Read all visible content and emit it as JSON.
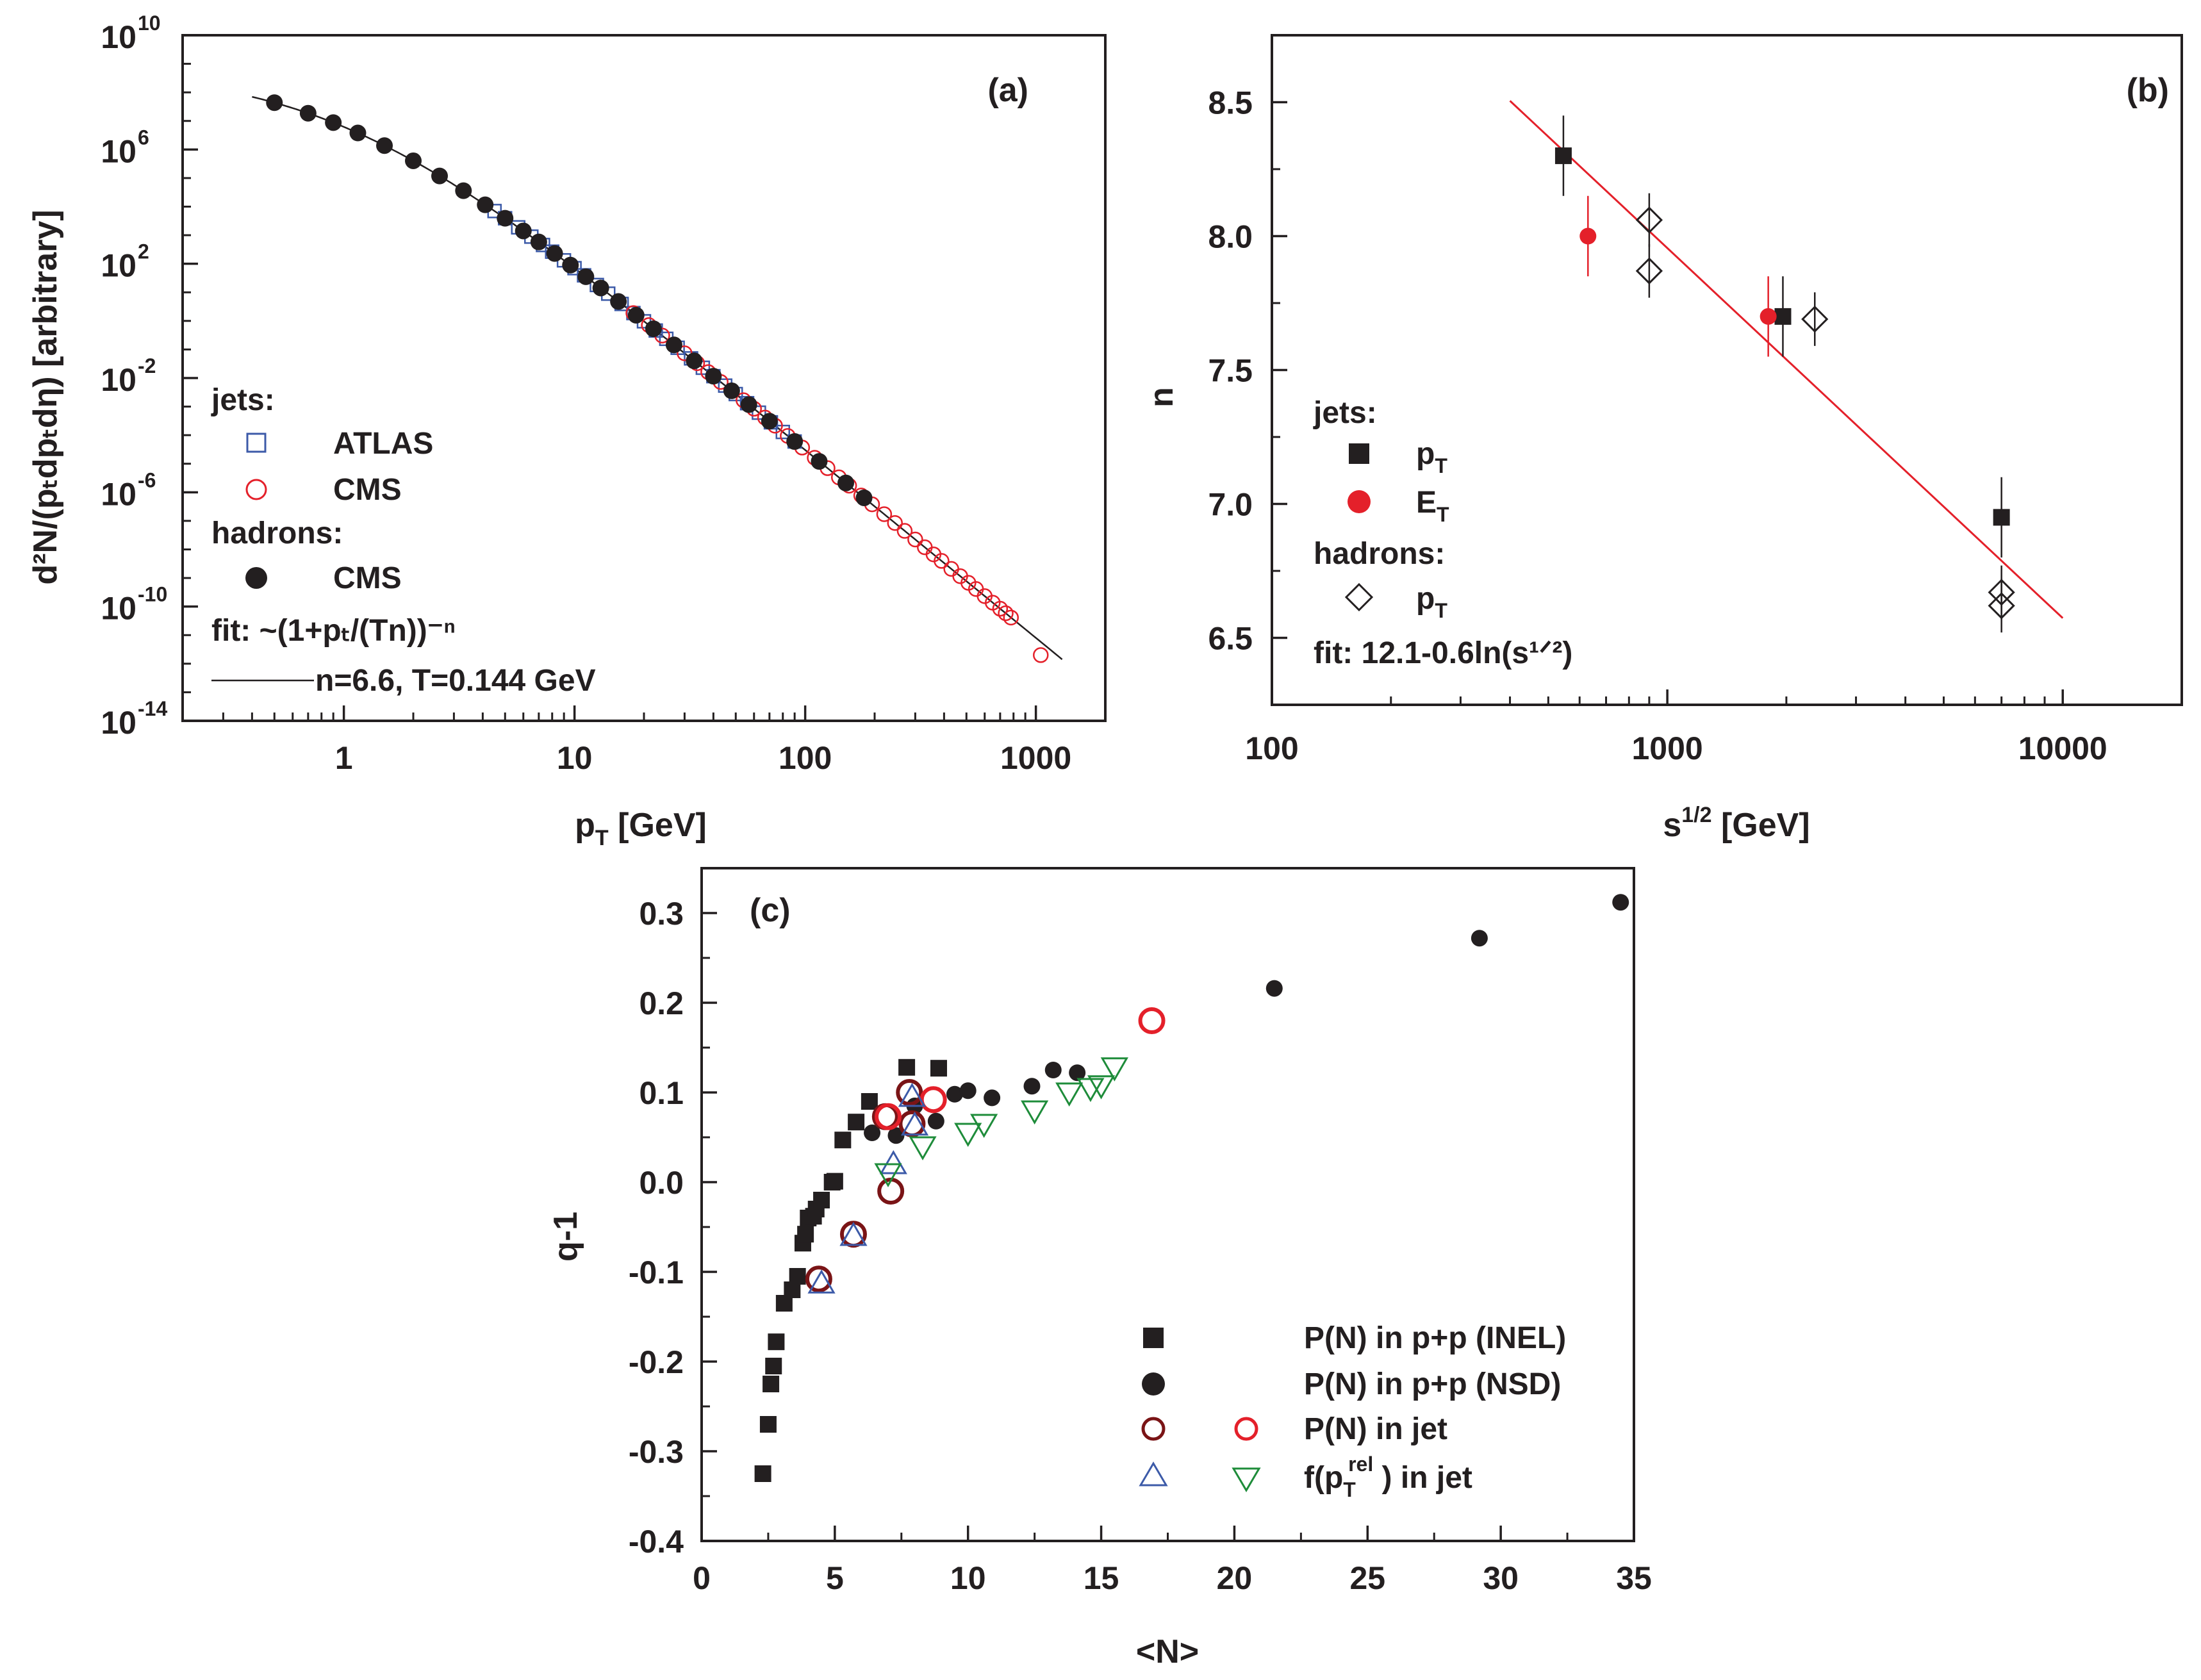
{
  "chart_data": [
    {
      "id": "a",
      "type": "scatter",
      "panel_label": "(a)",
      "xlabel_main": "p",
      "xlabel_sub": "T",
      "xlabel_unit": " [GeV]",
      "ylabel": "d²N/(pₜdpₜdη) [arbitrary]",
      "xscale": "log",
      "yscale": "log",
      "xlim": [
        0.2,
        2000
      ],
      "ylim": [
        1e-14,
        10000000000.0
      ],
      "xticks": [
        {
          "value": 1,
          "label": "1"
        },
        {
          "value": 10,
          "label": "10"
        },
        {
          "value": 100,
          "label": "100"
        },
        {
          "value": 1000,
          "label": "1000"
        }
      ],
      "yticks": [
        {
          "value": 10000000000.0,
          "exp": "10",
          "label": "10"
        },
        {
          "value": 1000000.0,
          "exp": "6",
          "label": "10"
        },
        {
          "value": 100.0,
          "exp": "2",
          "label": "10"
        },
        {
          "value": 0.01,
          "exp": "-2",
          "label": "10"
        },
        {
          "value": 1e-06,
          "exp": "-6",
          "label": "10"
        },
        {
          "value": 1e-10,
          "exp": "-10",
          "label": "10"
        },
        {
          "value": 1e-14,
          "exp": "-14",
          "label": "10"
        }
      ],
      "legend": {
        "jets_header": "jets:",
        "atlas": "ATLAS",
        "cms_jets": "CMS",
        "hadrons_header": "hadrons:",
        "cms_hadrons": "CMS",
        "fit_formula": "fit: ~(1+pₜ/(Tn))⁻ⁿ",
        "fit_params": "n=6.6, T=0.144 GeV"
      },
      "fit": {
        "n": 6.6,
        "T": 0.144,
        "norm_at_0.4": 70000000.0,
        "x_range": [
          0.4,
          1300
        ]
      },
      "series": [
        {
          "name": "ATLAS",
          "marker": "open-square",
          "color": "#3c5aa8",
          "x": [
            4.5,
            5.0,
            5.7,
            6.5,
            7.3,
            8.0,
            9.0,
            10.0,
            11.0,
            12.5,
            14.0,
            16.0,
            18.0,
            20.0,
            22.5,
            25.0,
            28.0,
            32.0,
            36.0,
            40.0,
            45.0,
            50.0,
            56.0,
            63.0,
            71.0,
            80.0,
            90.0
          ]
        },
        {
          "name": "CMS jets",
          "marker": "open-circle",
          "color": "#e4202a",
          "x": [
            18.0,
            21.0,
            24.0,
            27.0,
            30.0,
            34.0,
            38.0,
            43.0,
            48.0,
            54.0,
            60.0,
            67.0,
            74.0,
            84.0,
            97.0,
            110.0,
            125.0,
            140.0,
            155.0,
            175.0,
            195.0,
            220.0,
            245.0,
            270.0,
            300.0,
            330.0,
            360.0,
            390.0,
            430.0,
            470.0,
            510.0,
            550.0,
            600.0,
            650.0,
            700.0,
            740.0,
            780.0,
            1050.0
          ],
          "y_override": {
            "1050.0": 2e-12
          }
        },
        {
          "name": "CMS hadrons",
          "marker": "filled-circle",
          "color": "#231f20",
          "x": [
            0.5,
            0.7,
            0.9,
            1.15,
            1.5,
            2.0,
            2.6,
            3.3,
            4.1,
            5.0,
            6.0,
            7.0,
            8.2,
            9.6,
            11.2,
            13.0,
            15.5,
            18.5,
            22.0,
            27.0,
            33.0,
            40.0,
            48.0,
            57.0,
            70.0,
            90.0,
            115.0,
            150.0,
            180.0
          ]
        }
      ]
    },
    {
      "id": "b",
      "type": "scatter",
      "panel_label": "(b)",
      "xlabel_main": "s",
      "xlabel_sup": "1/2",
      "xlabel_unit": " [GeV]",
      "ylabel": "n",
      "xscale": "log",
      "xlim": [
        100,
        20000
      ],
      "ylim": [
        6.25,
        8.75
      ],
      "xticks": [
        {
          "value": 100,
          "label": "100"
        },
        {
          "value": 1000,
          "label": "1000"
        },
        {
          "value": 10000,
          "label": "10000"
        }
      ],
      "yticks": [
        {
          "value": 6.5,
          "label": "6.5"
        },
        {
          "value": 7.0,
          "label": "7.0"
        },
        {
          "value": 7.5,
          "label": "7.5"
        },
        {
          "value": 8.0,
          "label": "8.0"
        },
        {
          "value": 8.5,
          "label": "8.5"
        }
      ],
      "legend": {
        "jets_header": "jets:",
        "pt_main": "p",
        "pt_sub": "T",
        "et_main": "E",
        "et_sub": "T",
        "hadrons_header": "hadrons:",
        "hpt_main": "p",
        "hpt_sub": "T",
        "fit_text": "fit: 12.1-0.6ln(s¹ᐟ²)"
      },
      "fit": {
        "a": 12.1,
        "b": 0.6,
        "x_range": [
          400,
          10000
        ]
      },
      "series": [
        {
          "name": "jets pT",
          "marker": "filled-square",
          "color": "#231f20",
          "points": [
            {
              "x": 546,
              "y": 8.3,
              "err": 0.15
            },
            {
              "x": 1960,
              "y": 7.7,
              "err": 0.15
            },
            {
              "x": 7000,
              "y": 6.95,
              "err": 0.15
            }
          ]
        },
        {
          "name": "jets ET",
          "marker": "filled-circle",
          "color": "#e4202a",
          "points": [
            {
              "x": 630,
              "y": 8.0,
              "err": 0.15
            },
            {
              "x": 1800,
              "y": 7.7,
              "err": 0.15
            }
          ]
        },
        {
          "name": "hadrons pT",
          "marker": "open-diamond",
          "color": "#231f20",
          "points": [
            {
              "x": 900,
              "y": 8.06,
              "err": 0.1
            },
            {
              "x": 900,
              "y": 7.87,
              "err": 0.1
            },
            {
              "x": 2360,
              "y": 7.69,
              "err": 0.1
            },
            {
              "x": 7000,
              "y": 6.67,
              "err": 0.1
            },
            {
              "x": 7000,
              "y": 6.62,
              "err": 0.1
            }
          ]
        }
      ]
    },
    {
      "id": "c",
      "type": "scatter",
      "panel_label": "(c)",
      "xlabel": "<N>",
      "ylabel": "q-1",
      "xlim": [
        0,
        35
      ],
      "ylim": [
        -0.4,
        0.35
      ],
      "xticks": [
        {
          "value": 0,
          "label": "0"
        },
        {
          "value": 5,
          "label": "5"
        },
        {
          "value": 10,
          "label": "10"
        },
        {
          "value": 15,
          "label": "15"
        },
        {
          "value": 20,
          "label": "20"
        },
        {
          "value": 25,
          "label": "25"
        },
        {
          "value": 30,
          "label": "30"
        },
        {
          "value": 35,
          "label": "35"
        }
      ],
      "yticks": [
        {
          "value": 0.3,
          "label": "0.3"
        },
        {
          "value": 0.2,
          "label": "0.2"
        },
        {
          "value": 0.1,
          "label": "0.1"
        },
        {
          "value": 0.0,
          "label": "0.0"
        },
        {
          "value": -0.1,
          "label": "-0.1"
        },
        {
          "value": -0.2,
          "label": "-0.2"
        },
        {
          "value": -0.3,
          "label": "-0.3"
        },
        {
          "value": -0.4,
          "label": "-0.4"
        }
      ],
      "legend": {
        "inel": "P(N) in p+p (INEL)",
        "nsd": "P(N) in p+p (NSD)",
        "pn_jet": "P(N) in jet",
        "f_prefix": "f(p",
        "f_sub": "T",
        "f_sup": "rel",
        "f_suffix": " ) in jet"
      },
      "series": [
        {
          "name": "P(N) in p+p (INEL)",
          "marker": "filled-square",
          "color": "#231f20",
          "x": [
            2.3,
            2.5,
            2.6,
            2.7,
            2.8,
            3.1,
            3.4,
            3.6,
            3.8,
            3.9,
            4.0,
            4.2,
            4.3,
            4.5,
            4.9,
            5.0,
            5.3,
            5.8,
            6.3,
            7.7,
            8.9
          ],
          "y": [
            -0.325,
            -0.27,
            -0.225,
            -0.205,
            -0.178,
            -0.135,
            -0.12,
            -0.105,
            -0.068,
            -0.058,
            -0.04,
            -0.038,
            -0.03,
            -0.02,
            0.0,
            0.001,
            0.047,
            0.067,
            0.09,
            0.128,
            0.127
          ]
        },
        {
          "name": "P(N) in p+p (NSD)",
          "marker": "filled-circle",
          "color": "#231f20",
          "x": [
            6.4,
            7.3,
            8.0,
            8.8,
            9.5,
            10.0,
            10.9,
            12.4,
            13.2,
            14.1,
            21.5,
            29.2,
            34.5
          ],
          "y": [
            0.055,
            0.052,
            0.085,
            0.068,
            0.098,
            0.102,
            0.094,
            0.107,
            0.125,
            0.122,
            0.216,
            0.272,
            0.312
          ]
        },
        {
          "name": "P(N) in jet (dark)",
          "marker": "open-circle-thick",
          "color": "#7a1416",
          "x": [
            4.4,
            5.7,
            7.1,
            7.8,
            7.9,
            6.9
          ],
          "y": [
            -0.108,
            -0.058,
            -0.01,
            0.1,
            0.065,
            0.073
          ]
        },
        {
          "name": "P(N) in jet (red)",
          "marker": "open-circle-thick",
          "color": "#e4202a",
          "x": [
            7.0,
            8.7,
            16.9
          ],
          "y": [
            0.073,
            0.092,
            0.18
          ]
        },
        {
          "name": "f(pT rel) in jet (blue)",
          "marker": "open-triangle-up",
          "color": "#3c5aa8",
          "x": [
            4.5,
            5.7,
            7.2,
            7.9,
            8.0
          ],
          "y": [
            -0.113,
            -0.06,
            0.02,
            0.095,
            0.063
          ]
        },
        {
          "name": "f(pT rel) in jet (green)",
          "marker": "open-triangle-down",
          "color": "#1e8c3a",
          "x": [
            7.0,
            8.3,
            10.0,
            10.6,
            12.5,
            13.8,
            14.6,
            15.0,
            15.5
          ],
          "y": [
            0.01,
            0.04,
            0.055,
            0.065,
            0.08,
            0.1,
            0.105,
            0.108,
            0.128
          ]
        }
      ]
    }
  ]
}
